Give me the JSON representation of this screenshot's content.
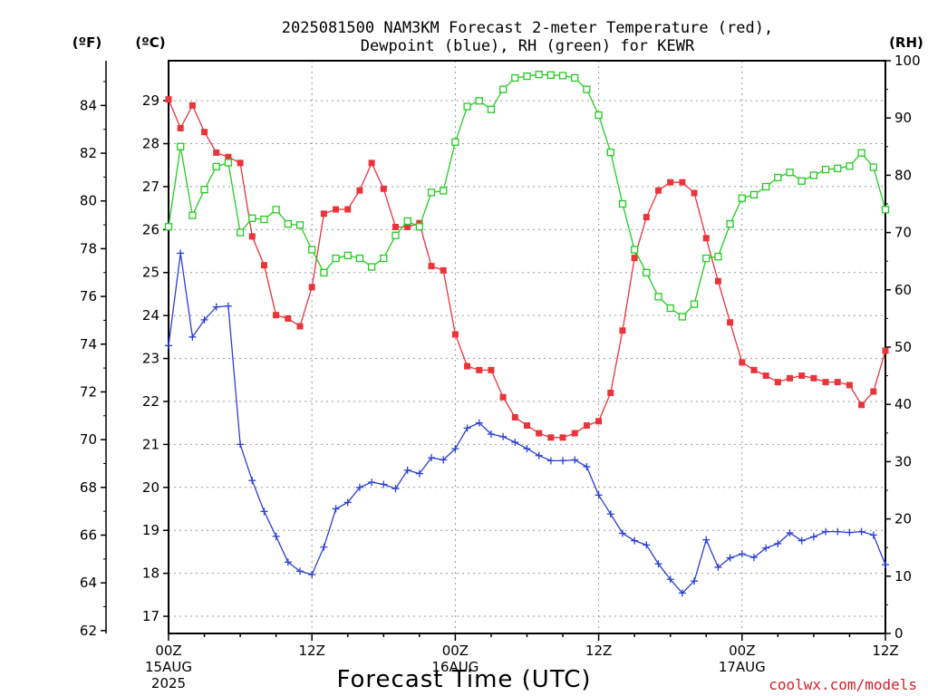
{
  "chart_data": {
    "type": "line",
    "title_line1": "2025081500 NAM3KM Forecast 2-meter Temperature (red),",
    "title_line2": "Dewpoint (blue), RH (green) for KEWR",
    "unit_f": "(ºF)",
    "unit_c": "(ºC)",
    "unit_rh": "(RH)",
    "xlabel": "Forecast Time (UTC)",
    "credit": "coolwx.com/models",
    "x_range_hours": [
      0,
      60
    ],
    "x_ticks": [
      {
        "hour": 0,
        "label": "00Z",
        "sub1": "15AUG",
        "sub2": "2025"
      },
      {
        "hour": 12,
        "label": "12Z",
        "sub1": "",
        "sub2": ""
      },
      {
        "hour": 24,
        "label": "00Z",
        "sub1": "16AUG",
        "sub2": ""
      },
      {
        "hour": 36,
        "label": "12Z",
        "sub1": "",
        "sub2": ""
      },
      {
        "hour": 48,
        "label": "00Z",
        "sub1": "17AUG",
        "sub2": ""
      },
      {
        "hour": 60,
        "label": "12Z",
        "sub1": "",
        "sub2": ""
      }
    ],
    "temp_axis_c": {
      "min": 16.6,
      "max": 29.93,
      "ticks": [
        17,
        18,
        19,
        20,
        21,
        22,
        23,
        24,
        25,
        26,
        27,
        28,
        29
      ]
    },
    "temp_axis_f": {
      "ticks": [
        62,
        64,
        66,
        68,
        70,
        72,
        74,
        76,
        78,
        80,
        82,
        84
      ]
    },
    "rh_axis": {
      "min": 0,
      "max": 100,
      "ticks": [
        0,
        10,
        20,
        30,
        40,
        50,
        60,
        70,
        80,
        90,
        100
      ]
    },
    "grid": true,
    "series": [
      {
        "color": "#e8343a",
        "marker": "filled-square",
        "axis": "temp_c",
        "x": [
          0,
          1,
          2,
          3,
          4,
          5,
          6,
          7,
          8,
          9,
          10,
          11,
          12,
          13,
          14,
          15,
          16,
          17,
          18,
          19,
          20,
          21,
          22,
          23,
          24,
          25,
          26,
          27,
          28,
          29,
          30,
          31,
          32,
          33,
          34,
          35,
          36,
          37,
          38,
          39,
          40,
          41,
          42,
          43,
          44,
          45,
          46,
          47,
          48,
          49,
          50,
          51,
          52,
          53,
          54,
          55,
          56,
          57,
          58,
          59,
          60
        ],
        "values": [
          29.03,
          28.36,
          28.89,
          28.27,
          27.79,
          27.69,
          27.55,
          25.84,
          25.17,
          24.01,
          23.93,
          23.75,
          24.66,
          26.37,
          26.47,
          26.47,
          26.91,
          27.55,
          26.95,
          26.06,
          26.06,
          26.15,
          25.15,
          25.05,
          23.56,
          22.82,
          22.73,
          22.73,
          22.1,
          21.63,
          21.44,
          21.26,
          21.16,
          21.16,
          21.26,
          21.44,
          21.54,
          22.2,
          23.65,
          25.34,
          26.29,
          26.91,
          27.1,
          27.1,
          26.85,
          25.8,
          24.8,
          23.84,
          22.91,
          22.73,
          22.6,
          22.45,
          22.54,
          22.6,
          22.54,
          22.45,
          22.45,
          22.38,
          21.92,
          22.23,
          23.18
        ]
      },
      {
        "color": "#2b3fd6",
        "marker": "plus",
        "axis": "temp_c",
        "x": [
          0,
          1,
          2,
          3,
          4,
          5,
          6,
          7,
          8,
          9,
          10,
          11,
          12,
          13,
          14,
          15,
          16,
          17,
          18,
          19,
          20,
          21,
          22,
          23,
          24,
          25,
          26,
          27,
          28,
          29,
          30,
          31,
          32,
          33,
          34,
          35,
          36,
          37,
          38,
          39,
          40,
          41,
          42,
          43,
          44,
          45,
          46,
          47,
          48,
          49,
          50,
          51,
          52,
          53,
          54,
          55,
          56,
          57,
          58,
          59,
          60
        ],
        "values": [
          23.3,
          25.45,
          23.5,
          23.9,
          24.2,
          24.22,
          21.0,
          20.16,
          19.44,
          18.86,
          18.26,
          18.05,
          17.97,
          18.61,
          19.5,
          19.65,
          20.0,
          20.12,
          20.07,
          19.97,
          20.4,
          20.32,
          20.69,
          20.64,
          20.9,
          21.38,
          21.5,
          21.24,
          21.18,
          21.05,
          20.9,
          20.74,
          20.62,
          20.62,
          20.64,
          20.48,
          19.82,
          19.38,
          18.93,
          18.76,
          18.66,
          18.22,
          17.86,
          17.54,
          17.82,
          18.78,
          18.14,
          18.36,
          18.45,
          18.37,
          18.59,
          18.69,
          18.94,
          18.76,
          18.85,
          18.97,
          18.97,
          18.95,
          18.97,
          18.89,
          18.2
        ]
      },
      {
        "color": "#22cc22",
        "marker": "open-square",
        "axis": "rh",
        "x": [
          0,
          1,
          2,
          3,
          4,
          5,
          6,
          7,
          8,
          9,
          10,
          11,
          12,
          13,
          14,
          15,
          16,
          17,
          18,
          19,
          20,
          21,
          22,
          23,
          24,
          25,
          26,
          27,
          28,
          29,
          30,
          31,
          32,
          33,
          34,
          35,
          36,
          37,
          38,
          39,
          40,
          41,
          42,
          43,
          44,
          45,
          46,
          47,
          48,
          49,
          50,
          51,
          52,
          53,
          54,
          55,
          56,
          57,
          58,
          59,
          60
        ],
        "values": [
          71,
          85,
          73,
          77.5,
          81.5,
          82.2,
          70,
          72.5,
          72.3,
          74,
          71.5,
          71.3,
          67,
          63,
          65.5,
          66,
          65.5,
          64,
          65.5,
          69.5,
          72,
          71,
          77,
          77.3,
          85.8,
          92,
          93,
          91.5,
          95,
          97,
          97.3,
          97.6,
          97.5,
          97.4,
          97,
          95,
          90.5,
          84,
          75,
          67,
          63,
          58.8,
          56.8,
          55.3,
          57.5,
          65.5,
          65.8,
          71.5,
          76,
          76.6,
          78,
          79.6,
          80.5,
          79,
          80,
          81,
          81.2,
          81.6,
          83.9,
          81.4,
          74
        ]
      }
    ]
  }
}
